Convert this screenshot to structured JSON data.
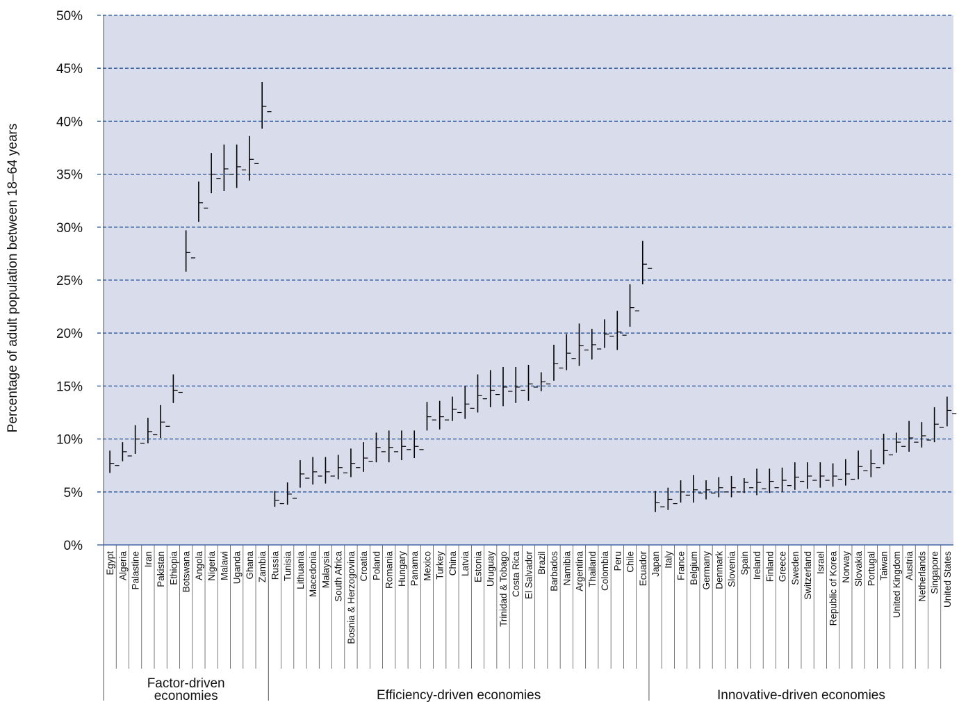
{
  "chart_data": {
    "type": "hi-lo-close",
    "ylabel": "Percentage of adult population between 18–64 years",
    "xlabel": "",
    "ylim": [
      0,
      50
    ],
    "y_ticks": [
      "0%",
      "5%",
      "10%",
      "15%",
      "20%",
      "25%",
      "30%",
      "35%",
      "40%",
      "45%",
      "50%"
    ],
    "grid": true,
    "categories": [
      "Egypt",
      "Algeria",
      "Palastine",
      "Iran",
      "Pakistan",
      "Ethiopia",
      "Botswana",
      "Angola",
      "Nigeria",
      "Malawi",
      "Uganda",
      "Ghana",
      "Zambia",
      "Russia",
      "Tunisia",
      "Lithuania",
      "Macedonia",
      "Malaysia",
      "South Africa",
      "Bosnia & Herzogovina",
      "Croatia",
      "Poland",
      "Romania",
      "Hungary",
      "Panama",
      "Mexico",
      "Turkey",
      "China",
      "Latvia",
      "Estonia",
      "Uruguay",
      "Trinidad & Tobago",
      "Costa Rica",
      "El Salvador",
      "Brazil",
      "Barbados",
      "Namibia",
      "Argentina",
      "Thailand",
      "Colombia",
      "Peru",
      "Chile",
      "Ecuador",
      "Japan",
      "Italy",
      "France",
      "Belgium",
      "Germany",
      "Denmark",
      "Slovenia",
      "Spain",
      "Ireland",
      "Finland",
      "Greece",
      "Sweden",
      "Switzerland",
      "Israel",
      "Republic of Korea",
      "Norway",
      "Slovakia",
      "Portugal",
      "Taiwan",
      "United Kingdom",
      "Austria",
      "Netherlands",
      "Singapore",
      "United States"
    ],
    "high": [
      8.9,
      9.7,
      11.3,
      12.0,
      13.2,
      16.1,
      29.7,
      34.3,
      37.0,
      37.8,
      37.8,
      38.6,
      43.7,
      5.1,
      5.9,
      8.0,
      8.3,
      8.3,
      8.5,
      9.1,
      9.7,
      10.6,
      10.8,
      10.8,
      10.8,
      13.5,
      13.6,
      14.0,
      15.0,
      16.1,
      16.5,
      16.8,
      16.8,
      17.0,
      16.3,
      18.9,
      19.9,
      20.9,
      20.4,
      21.3,
      22.1,
      24.6,
      28.7,
      5.1,
      5.4,
      6.1,
      6.6,
      6.1,
      6.4,
      6.5,
      6.3,
      7.2,
      7.2,
      7.3,
      7.8,
      7.8,
      7.8,
      7.7,
      8.1,
      8.9,
      9.0,
      10.5,
      10.6,
      11.7,
      11.6,
      13.0,
      14.0
    ],
    "low": [
      6.8,
      7.9,
      8.6,
      9.6,
      10.1,
      13.4,
      25.8,
      30.5,
      33.2,
      33.4,
      33.7,
      34.4,
      39.3,
      3.6,
      3.8,
      5.4,
      5.7,
      5.8,
      6.2,
      6.4,
      6.9,
      7.8,
      7.8,
      8.0,
      8.2,
      10.8,
      10.9,
      11.7,
      11.9,
      12.5,
      13.0,
      13.1,
      13.4,
      13.6,
      14.5,
      15.5,
      16.5,
      16.9,
      17.5,
      18.6,
      18.4,
      20.6,
      24.6,
      3.1,
      3.3,
      4.0,
      4.0,
      4.3,
      4.5,
      4.5,
      4.9,
      4.7,
      4.9,
      5.0,
      5.2,
      5.3,
      5.4,
      5.5,
      5.6,
      6.2,
      6.4,
      7.6,
      8.7,
      8.8,
      9.2,
      9.7,
      11.2
    ],
    "open": [
      7.7,
      8.8,
      10.0,
      10.7,
      11.6,
      14.6,
      27.6,
      32.3,
      35.0,
      35.5,
      35.7,
      36.4,
      41.4,
      4.2,
      4.8,
      6.7,
      6.9,
      6.9,
      7.3,
      7.7,
      8.2,
      9.2,
      9.2,
      9.3,
      9.3,
      12.1,
      12.1,
      12.8,
      13.3,
      14.1,
      14.6,
      14.9,
      14.9,
      15.2,
      15.4,
      17.1,
      18.1,
      18.8,
      18.9,
      19.9,
      20.1,
      22.4,
      26.5,
      4.0,
      4.3,
      5.0,
      5.2,
      5.2,
      5.4,
      5.4,
      5.9,
      5.9,
      6.0,
      6.1,
      6.4,
      6.5,
      6.5,
      6.5,
      6.7,
      7.4,
      7.7,
      8.9,
      9.7,
      10.1,
      10.3,
      11.4,
      12.7
    ],
    "close": [
      7.5,
      8.4,
      9.6,
      10.4,
      11.2,
      14.4,
      27.1,
      31.8,
      34.6,
      35.0,
      35.4,
      36.0,
      40.9,
      3.9,
      4.4,
      6.3,
      6.5,
      6.5,
      6.8,
      7.3,
      7.9,
      8.8,
      8.8,
      9.0,
      9.0,
      11.8,
      11.8,
      12.5,
      12.9,
      13.8,
      14.2,
      14.5,
      14.6,
      14.9,
      15.2,
      16.7,
      17.6,
      18.4,
      18.5,
      19.7,
      19.8,
      22.1,
      26.1,
      3.6,
      3.9,
      4.7,
      4.9,
      4.9,
      5.0,
      5.0,
      5.4,
      5.3,
      5.4,
      5.6,
      6.0,
      6.1,
      6.1,
      6.2,
      6.2,
      7.0,
      7.3,
      8.5,
      9.3,
      9.7,
      9.9,
      11.1,
      12.4
    ],
    "groups": [
      {
        "label_line1": "Factor-driven",
        "label_line2": "economies",
        "count": 13
      },
      {
        "label_line1": "Efficiency-driven economies",
        "label_line2": "",
        "count": 30
      },
      {
        "label_line1": "Innovative-driven economies",
        "label_line2": "",
        "count": 24
      }
    ],
    "colors": {
      "plot_bg": "#d9dcea",
      "gridline": "#1f4e9a",
      "mark": "#000000",
      "axis": "#555555"
    }
  }
}
